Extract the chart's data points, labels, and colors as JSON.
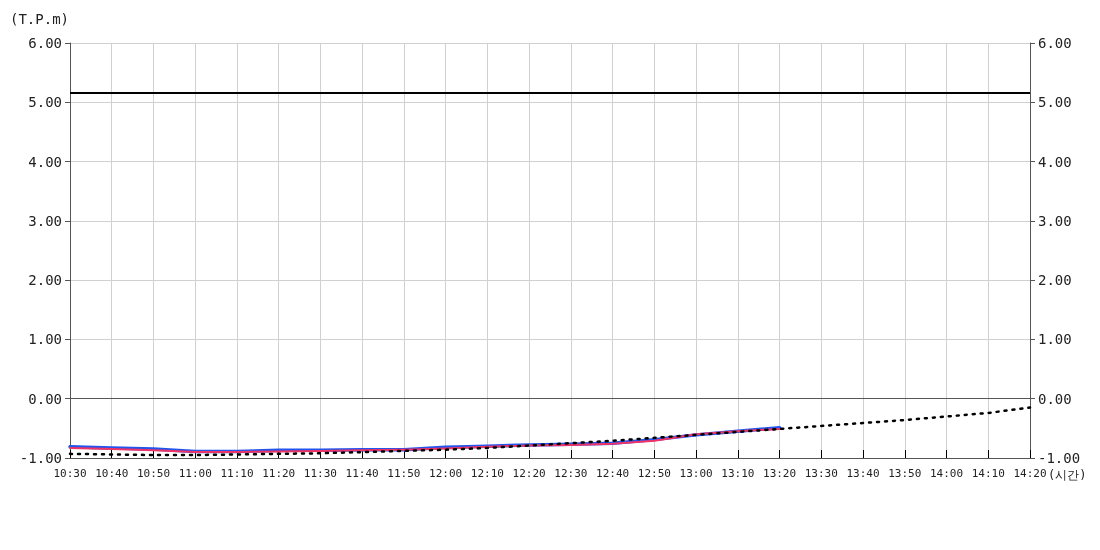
{
  "chart_data": {
    "type": "line",
    "ylabel": "(T.P.m)",
    "xlabel": "(시간)",
    "categories": [
      "10:30",
      "10:40",
      "10:50",
      "11:00",
      "11:10",
      "11:20",
      "11:30",
      "11:40",
      "11:50",
      "12:00",
      "12:10",
      "12:20",
      "12:30",
      "12:40",
      "12:50",
      "13:00",
      "13:10",
      "13:20",
      "13:30",
      "13:40",
      "13:50",
      "14:00",
      "14:10",
      "14:20"
    ],
    "series": [
      {
        "color": "#2255ee",
        "values": [
          -0.81,
          -0.83,
          -0.85,
          -0.89,
          -0.89,
          -0.87,
          -0.87,
          -0.86,
          -0.86,
          -0.82,
          -0.8,
          -0.78,
          -0.77,
          -0.75,
          -0.69,
          -0.61,
          -0.55,
          -0.49,
          null,
          null,
          null,
          null,
          null,
          null
        ]
      },
      {
        "color": "#ee3366",
        "values": [
          -0.83,
          -0.85,
          -0.87,
          -0.9,
          -0.9,
          -0.89,
          -0.88,
          -0.87,
          -0.86,
          -0.84,
          -0.81,
          -0.79,
          -0.78,
          -0.76,
          -0.71,
          -0.6,
          -0.55,
          -0.51,
          null,
          null,
          null,
          null,
          null,
          null
        ]
      },
      {
        "color": "#000000",
        "line_style": "dotted",
        "values": [
          -0.93,
          -0.94,
          -0.95,
          -0.95,
          -0.94,
          -0.93,
          -0.92,
          -0.9,
          -0.88,
          -0.86,
          -0.83,
          -0.79,
          -0.75,
          -0.71,
          -0.66,
          -0.61,
          -0.56,
          -0.51,
          -0.46,
          -0.41,
          -0.36,
          -0.3,
          -0.24,
          -0.15
        ]
      }
    ],
    "ylim": [
      -1,
      6
    ],
    "yticks": [
      {
        "value": -1,
        "label": "-1.00"
      },
      {
        "value": 0,
        "label": "0.00"
      },
      {
        "value": 1,
        "label": "1.00"
      },
      {
        "value": 2,
        "label": "2.00"
      },
      {
        "value": 3,
        "label": "3.00"
      },
      {
        "value": 4,
        "label": "4.00"
      },
      {
        "value": 5,
        "label": "5.00"
      },
      {
        "value": 6,
        "label": "6.00"
      }
    ],
    "y2lim": [
      -1,
      6
    ],
    "y2ticks": [
      {
        "value": -1,
        "label": "-1.00"
      },
      {
        "value": 0,
        "label": "0.00"
      },
      {
        "value": 1,
        "label": "1.00"
      },
      {
        "value": 2,
        "label": "2.00"
      },
      {
        "value": 3,
        "label": "3.00"
      },
      {
        "value": 4,
        "label": "4.00"
      },
      {
        "value": 5,
        "label": "5.00"
      },
      {
        "value": 6,
        "label": "6.00"
      }
    ],
    "ref_lines": [
      {
        "axis": "y",
        "value": 5.16,
        "color": "#000000"
      },
      {
        "axis": "y",
        "value": 0,
        "color": "#555555"
      }
    ],
    "grid": true,
    "marker": "none"
  }
}
